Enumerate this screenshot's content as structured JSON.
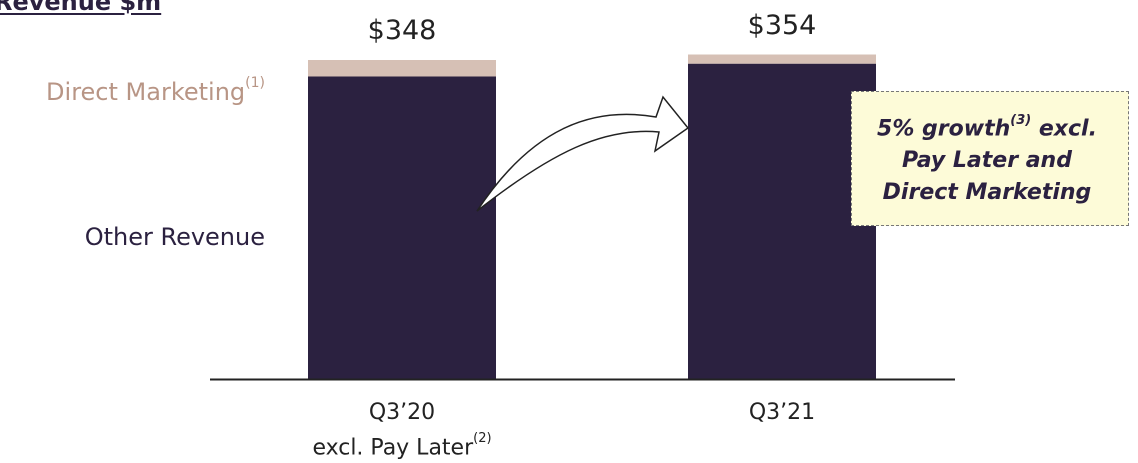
{
  "chart_data": {
    "type": "bar",
    "stacked": true,
    "title": "Revenue $m",
    "categories": [
      {
        "label": "Q3’20",
        "sublabel": "excl. Pay Later",
        "sublabel_note": "(2)"
      },
      {
        "label": "Q3’21",
        "sublabel": "",
        "sublabel_note": ""
      }
    ],
    "series": [
      {
        "name": "Other Revenue",
        "note": "",
        "color": "#2b2140",
        "values": [
          330,
          344
        ]
      },
      {
        "name": "Direct Marketing",
        "note": "(1)",
        "color": "#d6c0b5",
        "values": [
          18,
          10
        ]
      }
    ],
    "totals": [
      "$348",
      "$354"
    ],
    "ylim": [
      0,
      360
    ],
    "grid": false,
    "legend_placement": "left",
    "annotation": {
      "line1_text": "5% growth",
      "line1_note": "(3)",
      "line1_rest": " excl.",
      "line2": "Pay Later and",
      "line3": "Direct Marketing"
    }
  }
}
